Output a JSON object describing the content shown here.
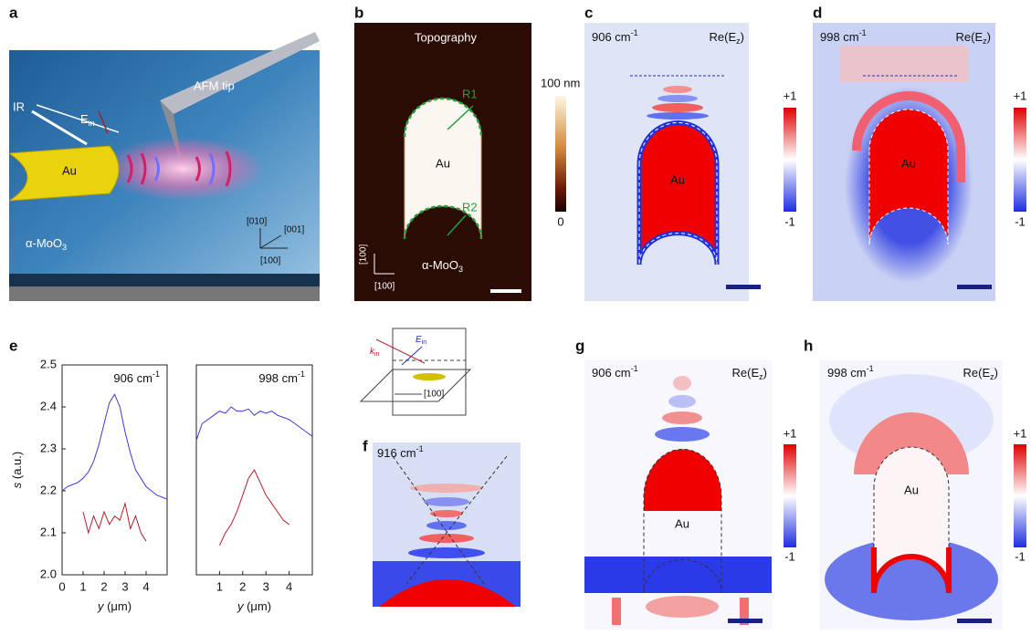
{
  "panels": {
    "a": {
      "letter": "a",
      "e_in": {
        "main": "E",
        "sub": "in"
      },
      "ir": "IR",
      "tip": "AFM tip",
      "au": "Au",
      "material": {
        "main": "α-MoO",
        "sub": "3"
      },
      "axes": [
        "[010]",
        "[001]",
        "[100]"
      ]
    },
    "b": {
      "letter": "b",
      "title": "Topography",
      "r1": "R1",
      "r2": "R2",
      "au": "Au",
      "cbar_top": "100 nm",
      "cbar_bottom": "0",
      "axes": [
        "[100]",
        "[100]"
      ],
      "material": {
        "main": "α-MoO",
        "sub": "3"
      }
    },
    "c": {
      "letter": "c",
      "freq": {
        "main": "906 cm",
        "sup": "-1"
      },
      "field": {
        "main": "Re(E",
        "sub": "z",
        "end": ")"
      },
      "cbar_top": "+1",
      "cbar_bottom": "-1",
      "au": "Au"
    },
    "d": {
      "letter": "d",
      "freq": {
        "main": "998 cm",
        "sup": "-1"
      },
      "field": {
        "main": "Re(E",
        "sub": "z",
        "end": ")"
      },
      "cbar_top": "+1",
      "cbar_bottom": "-1",
      "au": "Au"
    },
    "e": {
      "letter": "e"
    },
    "inset": {
      "e_in": {
        "main": "E",
        "sub": "in"
      },
      "k_in": {
        "main": "k",
        "sub": "in"
      },
      "axis": "[100]"
    },
    "f": {
      "letter": "f",
      "freq": {
        "main": "916 cm",
        "sup": "-1"
      }
    },
    "g": {
      "letter": "g",
      "freq": {
        "main": "906 cm",
        "sup": "-1"
      },
      "field": {
        "main": "Re(E",
        "sub": "z",
        "end": ")"
      },
      "cbar_top": "+1",
      "cbar_bottom": "-1",
      "au": "Au"
    },
    "h": {
      "letter": "h",
      "freq": {
        "main": "998 cm",
        "sup": "-1"
      },
      "field": {
        "main": "Re(E",
        "sub": "z",
        "end": ")"
      },
      "cbar_top": "+1",
      "cbar_bottom": "-1",
      "au": "Au"
    }
  },
  "chart_data": [
    {
      "type": "line",
      "title": {
        "main": "906 cm",
        "sup": "-1"
      },
      "ylabel": {
        "var": "s",
        "rest": " (a.u.)"
      },
      "xlabel": {
        "var": "y",
        "rest": " (μm)"
      },
      "x": [
        0,
        0.25,
        0.5,
        0.75,
        1,
        1.25,
        1.5,
        1.75,
        2,
        2.25,
        2.5,
        2.75,
        3,
        3.25,
        3.5,
        3.75,
        4,
        4.25,
        4.5,
        4.75,
        5
      ],
      "series": [
        {
          "color": "#3b3bd6",
          "values": [
            2.2,
            2.21,
            2.215,
            2.22,
            2.23,
            2.245,
            2.27,
            2.31,
            2.36,
            2.41,
            2.43,
            2.4,
            2.34,
            2.29,
            2.25,
            2.23,
            2.21,
            2.2,
            2.19,
            2.185,
            2.18
          ]
        },
        {
          "color": "#b3202a",
          "values": [
            null,
            null,
            null,
            null,
            2.15,
            2.1,
            2.14,
            2.11,
            2.15,
            2.12,
            2.14,
            2.13,
            2.17,
            2.11,
            2.14,
            2.1,
            2.08,
            null,
            null,
            null,
            null
          ]
        }
      ],
      "xlim": [
        0,
        5
      ],
      "ylim": [
        2,
        2.5
      ],
      "xticks": [
        0,
        1,
        2,
        3,
        4
      ],
      "yticks": [
        {
          "value": 2,
          "label": "2.0"
        },
        2.1,
        2.2,
        2.3,
        2.4,
        2.5
      ]
    },
    {
      "type": "line",
      "title": {
        "main": "998 cm",
        "sup": "-1"
      },
      "xlabel": {
        "var": "y",
        "rest": " (μm)"
      },
      "x": [
        0,
        0.25,
        0.5,
        0.75,
        1,
        1.25,
        1.5,
        1.75,
        2,
        2.25,
        2.5,
        2.75,
        3,
        3.25,
        3.5,
        3.75,
        4,
        4.25,
        4.5,
        4.75,
        5
      ],
      "series": [
        {
          "color": "#3b3bd6",
          "values": [
            2.32,
            2.36,
            2.37,
            2.38,
            2.39,
            2.385,
            2.4,
            2.39,
            2.39,
            2.395,
            2.38,
            2.39,
            2.385,
            2.39,
            2.38,
            2.375,
            2.37,
            2.36,
            2.35,
            2.34,
            2.33
          ]
        },
        {
          "color": "#b3202a",
          "values": [
            null,
            null,
            null,
            null,
            2.07,
            2.1,
            2.12,
            2.15,
            2.19,
            2.23,
            2.25,
            2.22,
            2.19,
            2.17,
            2.15,
            2.13,
            2.12,
            null,
            null,
            null,
            null
          ]
        }
      ],
      "xlim": [
        0,
        5
      ],
      "ylim": [
        2,
        2.5
      ],
      "xticks": [
        1,
        2,
        3,
        4
      ]
    }
  ]
}
